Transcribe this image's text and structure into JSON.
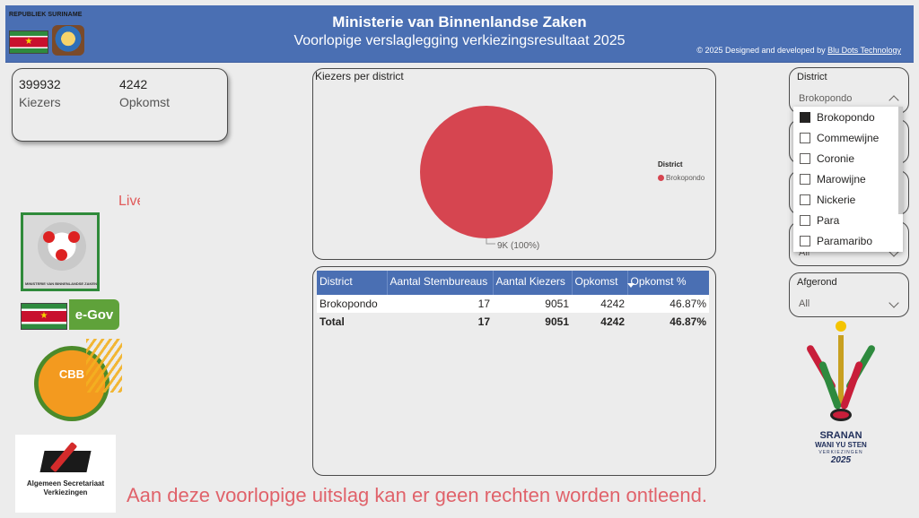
{
  "header": {
    "republic": "REPUBLIEK SURINAME",
    "title": "Ministerie van Binnenlandse Zaken",
    "subtitle": "Voorlopige verslaglegging verkiezingsresultaat 2025",
    "credit_prefix": "© 2025 Designed and developed by ",
    "credit_link": "Blu Dots Technology"
  },
  "kpi": {
    "kiezers_value": "399932",
    "kiezers_label": "Kiezers",
    "opkomst_value": "4242",
    "opkomst_label": "Opkomst"
  },
  "live_text": "Live",
  "logos": {
    "minbiza_caption": "MINISTERIE VAN BINNENLANDSE ZAKEN",
    "egov": "e-Gov",
    "cbb": "CBB",
    "asv_line1": "Algemeen Secretariaat",
    "asv_line2": "Verkiezingen",
    "sranan_line1": "SRANAN",
    "sranan_line2": "WANI YU STEN",
    "sranan_line3": "VERKIEZINGEN",
    "sranan_line4": "2025"
  },
  "pie_chart": {
    "title": "Kiezers per district",
    "legend_title": "District",
    "slice_label": "9K (100%)",
    "color": "#d64550"
  },
  "chart_data": {
    "type": "pie",
    "title": "Kiezers per district",
    "legend_title": "District",
    "categories": [
      "Brokopondo"
    ],
    "values": [
      9051
    ],
    "data_labels": [
      "9K (100%)"
    ]
  },
  "table": {
    "columns": [
      "District",
      "Aantal Stembureaus",
      "Aantal Kiezers",
      "Opkomst",
      "Opkomst %"
    ],
    "rows": [
      [
        "Brokopondo",
        "17",
        "9051",
        "4242",
        "46.87%"
      ]
    ],
    "total": [
      "Total",
      "17",
      "9051",
      "4242",
      "46.87%"
    ]
  },
  "slicers": {
    "district": {
      "title": "District",
      "value": "Brokopondo",
      "options": [
        {
          "label": "Brokopondo",
          "checked": true
        },
        {
          "label": "Commewijne",
          "checked": false
        },
        {
          "label": "Coronie",
          "checked": false
        },
        {
          "label": "Marowijne",
          "checked": false
        },
        {
          "label": "Nickerie",
          "checked": false
        },
        {
          "label": "Para",
          "checked": false
        },
        {
          "label": "Paramaribo",
          "checked": false
        }
      ]
    },
    "afgerond": {
      "title": "Afgerond",
      "value": "All"
    },
    "hidden_slicer_value": "All"
  },
  "disclaimer": "Aan deze voorlopige uitslag kan er geen rechten worden ontleend.",
  "colors": {
    "header_bg": "#4a6fb3",
    "pie_slice": "#d64550",
    "disclaimer": "#e0626a"
  }
}
